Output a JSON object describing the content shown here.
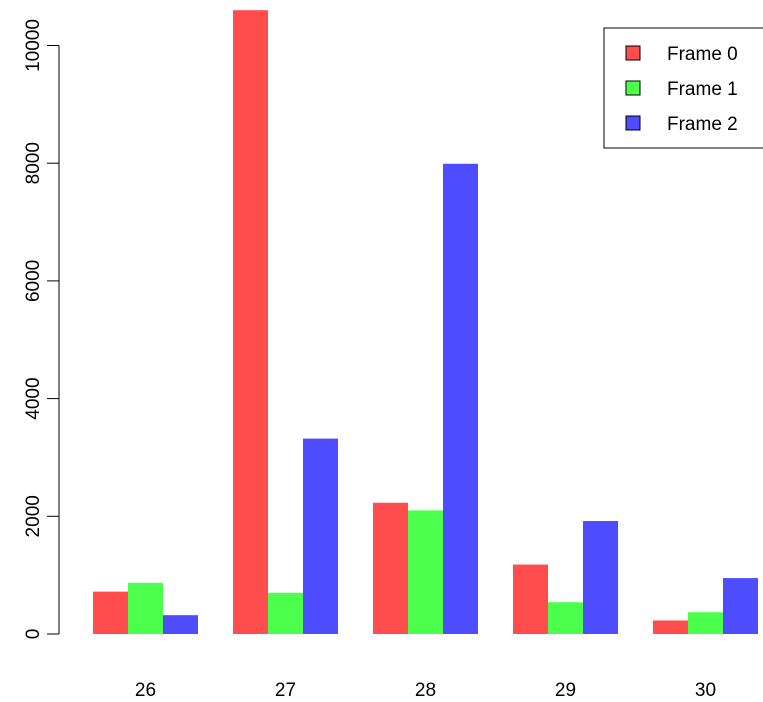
{
  "chart_data": {
    "type": "bar",
    "title": "",
    "xlabel": "",
    "ylabel": "",
    "categories": [
      "26",
      "27",
      "28",
      "29",
      "30"
    ],
    "series": [
      {
        "name": "Frame 0",
        "color": "#FF4D4D",
        "values": [
          720,
          10600,
          2230,
          1180,
          230
        ]
      },
      {
        "name": "Frame 1",
        "color": "#4DFF4D",
        "values": [
          870,
          700,
          2100,
          540,
          370
        ]
      },
      {
        "name": "Frame 2",
        "color": "#4D4DFF",
        "values": [
          320,
          3320,
          7990,
          1920,
          950
        ]
      }
    ],
    "y_ticks": [
      "0",
      "2000",
      "4000",
      "6000",
      "8000",
      "10000"
    ],
    "ylim": [
      0,
      10600
    ],
    "grid": false,
    "legend_position": "top-right"
  }
}
